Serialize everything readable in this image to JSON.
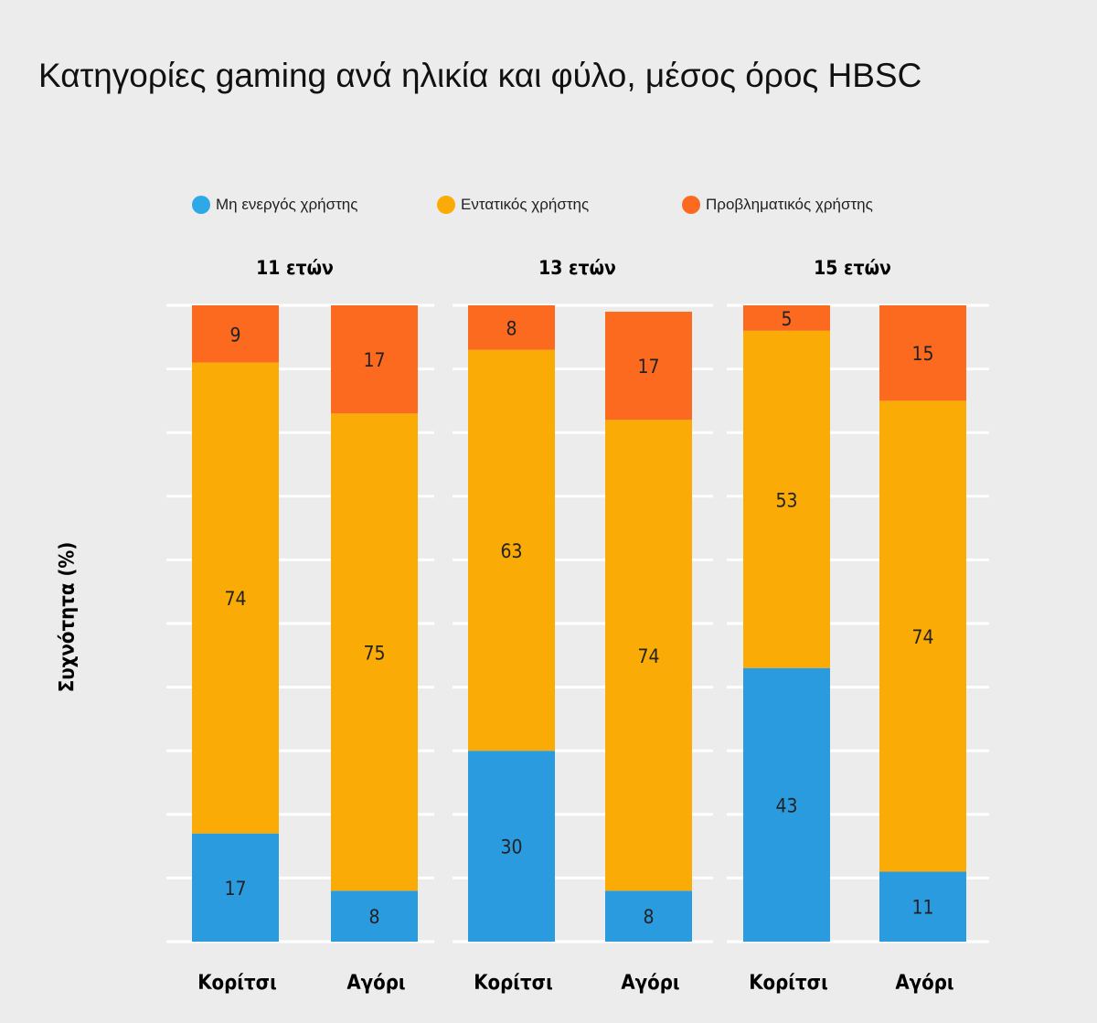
{
  "title": "Κατηγορίες gaming ανά ηλικία και φύλο, μέσος όρος HBSC",
  "chart_data": {
    "type": "bar",
    "stacked": true,
    "title": "Κατηγορίες gaming ανά ηλικία και φύλο, μέσος όρος HBSC",
    "ylabel": "Συχνότητα (%)",
    "xlabel": "",
    "ylim": [
      0,
      100
    ],
    "grid": true,
    "legend_position": "top",
    "groups": [
      "11 ετών",
      "13 ετών",
      "15 ετών"
    ],
    "categories": [
      "Κορίτσι",
      "Αγόρι"
    ],
    "series": [
      {
        "name": "Μη ενεργός χρήστης",
        "color": "#2b9be0",
        "values": [
          [
            17,
            8
          ],
          [
            30,
            8
          ],
          [
            43,
            11
          ]
        ]
      },
      {
        "name": "Εντατικός χρήστης",
        "color": "#fbab05",
        "values": [
          [
            74,
            75
          ],
          [
            63,
            74
          ],
          [
            53,
            74
          ]
        ]
      },
      {
        "name": "Προβληματικός χρήστης",
        "color": "#fb6a1f",
        "values": [
          [
            9,
            17
          ],
          [
            8,
            17
          ],
          [
            5,
            15
          ]
        ]
      }
    ]
  }
}
